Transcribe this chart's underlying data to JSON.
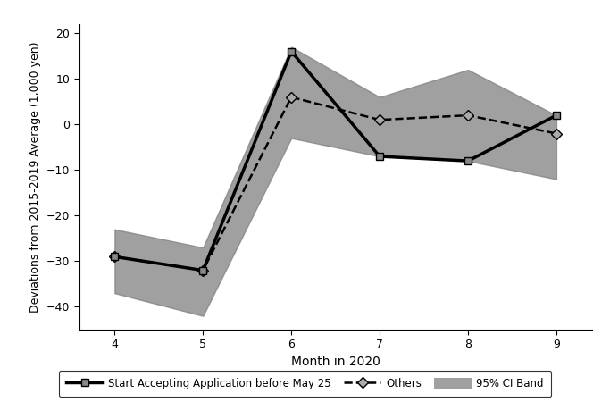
{
  "months": [
    4,
    5,
    6,
    7,
    8,
    9
  ],
  "line1_y": [
    -29,
    -32,
    16,
    -7,
    -8,
    2
  ],
  "line2_y": [
    -29,
    -32,
    6,
    1,
    2,
    -2
  ],
  "ci_upper": [
    -23,
    -27,
    17,
    6,
    12,
    2
  ],
  "ci_lower": [
    -37,
    -42,
    -3,
    -7,
    -8,
    -12
  ],
  "ylim": [
    -45,
    22
  ],
  "yticks": [
    -40,
    -30,
    -20,
    -10,
    0,
    10,
    20
  ],
  "xticks": [
    4,
    5,
    6,
    7,
    8,
    9
  ],
  "xlabel": "Month in 2020",
  "ylabel": "Deviations from 2015-2019 Average (1,000 yen)",
  "ci_color": "#808080",
  "ci_alpha": 0.75,
  "line1_color": "#000000",
  "line2_color": "#000000",
  "line1_label": "Start Accepting Application before May 25",
  "line2_label": "Others",
  "ci_label": "95% CI Band"
}
